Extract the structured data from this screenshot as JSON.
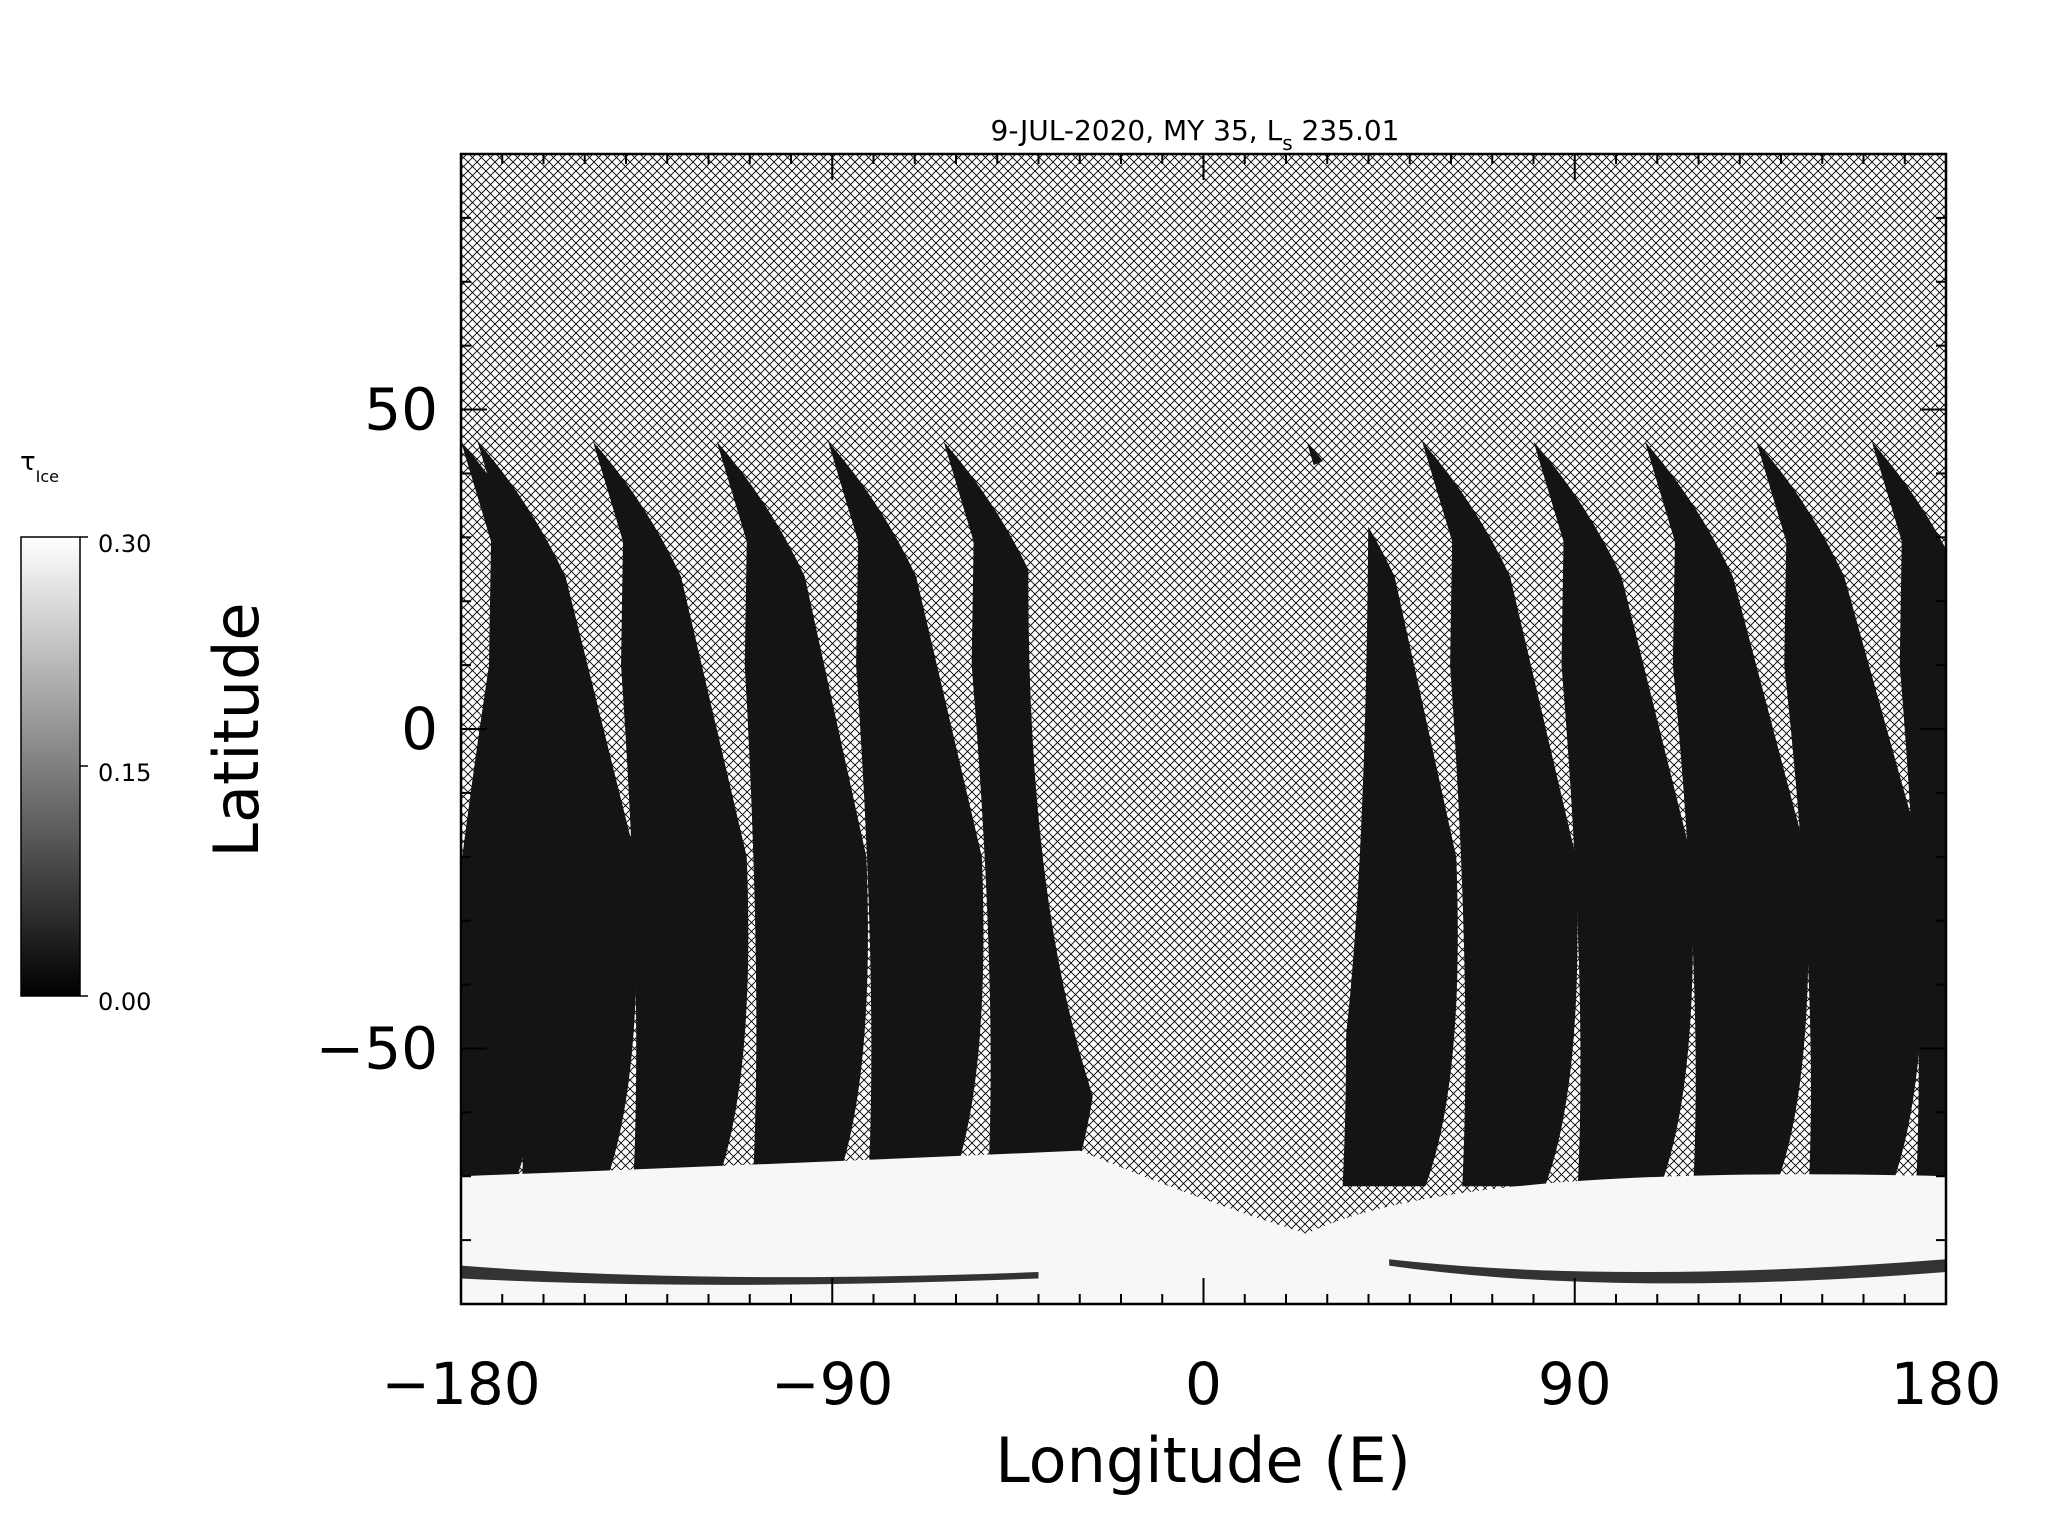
{
  "chart_data": {
    "type": "heatmap",
    "title": "9-JUL-2020, MY 35,  L",
    "title_sub": "s",
    "title_suffix": " 235.01",
    "xlabel": "Longitude (E)",
    "ylabel": "Latitude",
    "xlim": [
      -180,
      180
    ],
    "ylim": [
      -90,
      90
    ],
    "xticks": [
      -180,
      -90,
      0,
      90,
      180
    ],
    "xtick_labels": [
      "−180",
      "−90",
      "0",
      "90",
      "180"
    ],
    "yticks": [
      -50,
      0,
      50
    ],
    "ytick_labels": [
      "−50",
      "0",
      "50"
    ],
    "colorbar": {
      "label": "τ",
      "label_sub": "Ice",
      "range": [
        0.0,
        0.3
      ],
      "tick_labels": [
        "0.30",
        "0.15",
        "0.00"
      ],
      "colormap": "grayscale"
    },
    "swaths": [
      {
        "lon_start": -180,
        "lon_top": -180
      },
      {
        "lon_start": -158,
        "lon_top": -176
      },
      {
        "lon_start": -131,
        "lon_top": -148
      },
      {
        "lon_start": -102,
        "lon_top": -118
      },
      {
        "lon_start": -74,
        "lon_top": -91
      },
      {
        "lon_start": -45,
        "lon_top": -63
      },
      {
        "lon_start": 41,
        "lon_top": 25
      },
      {
        "lon_start": 70,
        "lon_top": 53
      },
      {
        "lon_start": 98,
        "lon_top": 80
      },
      {
        "lon_start": 126,
        "lon_top": 107
      },
      {
        "lon_start": 154,
        "lon_top": 134
      },
      {
        "lon_start": 180,
        "lon_top": 162
      }
    ],
    "cap_lat_south": -70,
    "swath_top_lat": 45,
    "colors": {
      "swath": "#141414",
      "cap": "#f7f7f7",
      "hatch": "#000000",
      "background": "#ffffff"
    }
  }
}
